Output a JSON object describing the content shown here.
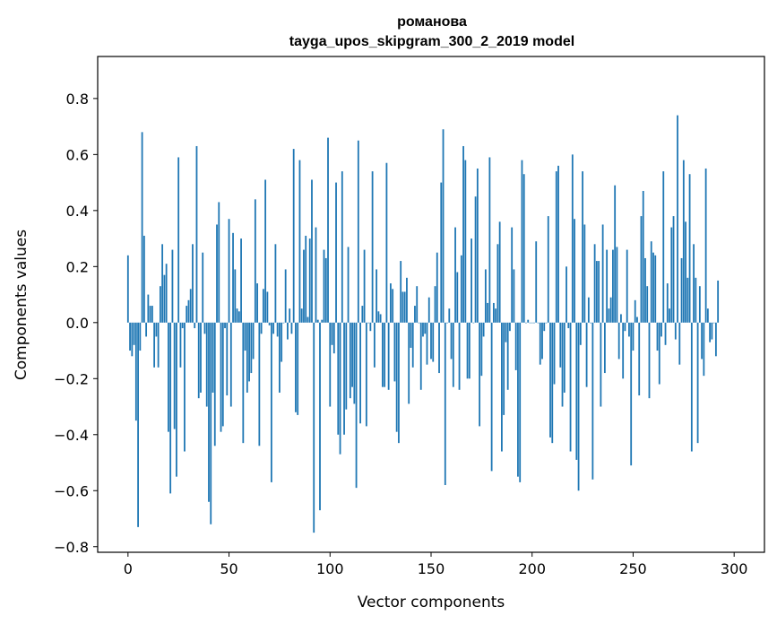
{
  "chart_data": {
    "type": "bar",
    "title_lines": [
      "романова",
      "tayga_upos_skipgram_300_2_2019 model"
    ],
    "xlabel": "Vector components",
    "ylabel": "Components values",
    "xlim": [
      -15,
      315
    ],
    "ylim": [
      -0.82,
      0.95
    ],
    "xticks": [
      0,
      50,
      100,
      150,
      200,
      250,
      300
    ],
    "yticks": [
      -0.8,
      -0.6,
      -0.4,
      -0.2,
      0.0,
      0.2,
      0.4,
      0.6,
      0.8
    ],
    "ytick_labels": [
      "−0.8",
      "−0.6",
      "−0.4",
      "−0.2",
      "0.0",
      "0.2",
      "0.4",
      "0.6",
      "0.8"
    ],
    "grid": false,
    "bar_color": "#1f77b4",
    "values": [
      0.24,
      -0.1,
      -0.12,
      -0.08,
      -0.35,
      -0.73,
      -0.1,
      0.68,
      0.31,
      -0.05,
      0.1,
      0.06,
      0.06,
      -0.16,
      -0.05,
      -0.16,
      0.13,
      0.28,
      0.17,
      0.21,
      -0.39,
      -0.61,
      0.26,
      -0.38,
      -0.55,
      0.59,
      -0.16,
      -0.02,
      -0.46,
      0.06,
      0.08,
      0.12,
      0.28,
      -0.02,
      0.63,
      -0.27,
      -0.25,
      0.25,
      -0.04,
      -0.3,
      -0.64,
      -0.72,
      -0.25,
      -0.44,
      0.35,
      0.43,
      -0.39,
      -0.37,
      -0.02,
      -0.26,
      0.37,
      -0.3,
      0.32,
      0.19,
      0.05,
      0.04,
      0.3,
      -0.43,
      -0.1,
      -0.25,
      -0.21,
      -0.18,
      -0.13,
      0.44,
      0.14,
      -0.44,
      -0.04,
      0.12,
      0.51,
      0.11,
      -0.01,
      -0.57,
      -0.04,
      0.28,
      -0.05,
      -0.25,
      -0.14,
      0.0,
      0.19,
      -0.06,
      0.05,
      -0.04,
      0.62,
      -0.32,
      -0.33,
      0.58,
      0.05,
      0.26,
      0.31,
      0.02,
      0.3,
      0.51,
      -0.75,
      0.34,
      0.01,
      -0.67,
      0.01,
      0.26,
      0.23,
      0.66,
      -0.3,
      -0.08,
      -0.11,
      0.5,
      -0.4,
      -0.47,
      0.54,
      -0.4,
      -0.31,
      0.27,
      -0.27,
      -0.23,
      -0.29,
      -0.59,
      0.65,
      -0.36,
      0.06,
      0.26,
      -0.37,
      0.0,
      -0.03,
      0.54,
      -0.16,
      0.19,
      0.04,
      0.03,
      -0.23,
      -0.23,
      0.57,
      -0.24,
      0.14,
      0.12,
      -0.21,
      -0.39,
      -0.43,
      0.22,
      0.11,
      0.11,
      0.16,
      -0.29,
      -0.09,
      -0.16,
      0.06,
      0.13,
      0.0,
      -0.24,
      -0.05,
      -0.04,
      -0.15,
      0.09,
      -0.13,
      -0.14,
      0.13,
      0.25,
      -0.18,
      0.5,
      0.69,
      -0.58,
      0.0,
      0.05,
      -0.13,
      -0.23,
      0.34,
      0.18,
      -0.24,
      0.24,
      0.63,
      0.58,
      -0.2,
      -0.2,
      0.3,
      0.0,
      0.45,
      0.55,
      -0.37,
      -0.19,
      -0.05,
      0.19,
      0.07,
      0.59,
      -0.53,
      0.07,
      0.05,
      0.28,
      0.36,
      -0.46,
      -0.33,
      -0.07,
      -0.24,
      -0.03,
      0.34,
      0.19,
      -0.17,
      -0.55,
      -0.57,
      0.58,
      0.53,
      0.0,
      0.01,
      0.0,
      0.0,
      0.0,
      0.29,
      0.0,
      -0.15,
      -0.13,
      -0.03,
      0.0,
      0.38,
      -0.41,
      -0.43,
      -0.22,
      0.54,
      0.56,
      -0.16,
      -0.3,
      -0.25,
      0.2,
      -0.02,
      -0.46,
      0.6,
      0.37,
      -0.49,
      -0.6,
      -0.08,
      0.54,
      0.35,
      -0.23,
      0.09,
      0.0,
      -0.56,
      0.28,
      0.22,
      0.22,
      -0.3,
      0.35,
      -0.18,
      0.26,
      0.05,
      0.09,
      0.26,
      0.49,
      0.27,
      -0.13,
      0.03,
      -0.2,
      -0.03,
      0.26,
      -0.05,
      -0.51,
      -0.1,
      0.08,
      0.02,
      -0.26,
      0.38,
      0.47,
      0.23,
      0.13,
      -0.27,
      0.29,
      0.25,
      0.24,
      -0.1,
      -0.22,
      -0.05,
      0.54,
      -0.08,
      0.14,
      0.05,
      0.34,
      0.38,
      -0.06,
      0.74,
      -0.15,
      0.23,
      0.58,
      0.36,
      0.16,
      0.53,
      -0.46,
      0.28,
      0.16,
      -0.43,
      0.13,
      -0.13,
      -0.19,
      0.55,
      0.05,
      -0.07,
      -0.06,
      0.0,
      -0.12,
      0.15
    ]
  }
}
